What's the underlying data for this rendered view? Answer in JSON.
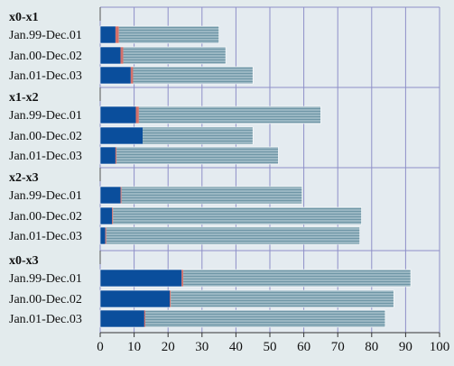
{
  "chart_data": {
    "type": "bar",
    "orientation": "horizontal",
    "stacked": true,
    "xlim": [
      0,
      100
    ],
    "x_ticks": [
      0,
      10,
      20,
      30,
      40,
      50,
      60,
      70,
      80,
      90,
      100
    ],
    "grid": true,
    "legend": "none",
    "colors": {
      "background": "#e3ebed",
      "plot_background": "#e4ebf0",
      "grid": "#8e8fc8",
      "series1": "#0a4e9c",
      "series2": "#d4716a",
      "series3": "#9ab7c3",
      "series3_stripe": "#6f96a6"
    },
    "groups": [
      {
        "label": "x0-x1",
        "bars": [
          {
            "label": "Jan.99-Dec.01",
            "segments": [
              4.5,
              1,
              29.5
            ]
          },
          {
            "label": "Jan.00-Dec.02",
            "segments": [
              6,
              0.8,
              30.2
            ]
          },
          {
            "label": "Jan.01-Dec.03",
            "segments": [
              9,
              0.7,
              35.3
            ]
          }
        ]
      },
      {
        "label": "x1-x2",
        "bars": [
          {
            "label": "Jan.99-Dec.01",
            "segments": [
              10.5,
              0.9,
              53.6
            ]
          },
          {
            "label": "Jan.00-Dec.02",
            "segments": [
              12.5,
              0,
              32.5
            ]
          },
          {
            "label": "Jan.01-Dec.03",
            "segments": [
              4.5,
              0.3,
              47.7
            ]
          }
        ]
      },
      {
        "label": "x2-x3",
        "bars": [
          {
            "label": "Jan.99-Dec.01",
            "segments": [
              6,
              0.3,
              53.2
            ]
          },
          {
            "label": "Jan.00-Dec.02",
            "segments": [
              3.5,
              0.3,
              73.2
            ]
          },
          {
            "label": "Jan.01-Dec.03",
            "segments": [
              1.5,
              0.3,
              74.7
            ]
          }
        ]
      },
      {
        "label": "x0-x3",
        "bars": [
          {
            "label": "Jan.99-Dec.01",
            "segments": [
              24,
              0.5,
              67
            ]
          },
          {
            "label": "Jan.00-Dec.02",
            "segments": [
              20.5,
              0.3,
              65.7
            ]
          },
          {
            "label": "Jan.01-Dec.03",
            "segments": [
              13,
              0.3,
              70.7
            ]
          }
        ]
      }
    ]
  }
}
